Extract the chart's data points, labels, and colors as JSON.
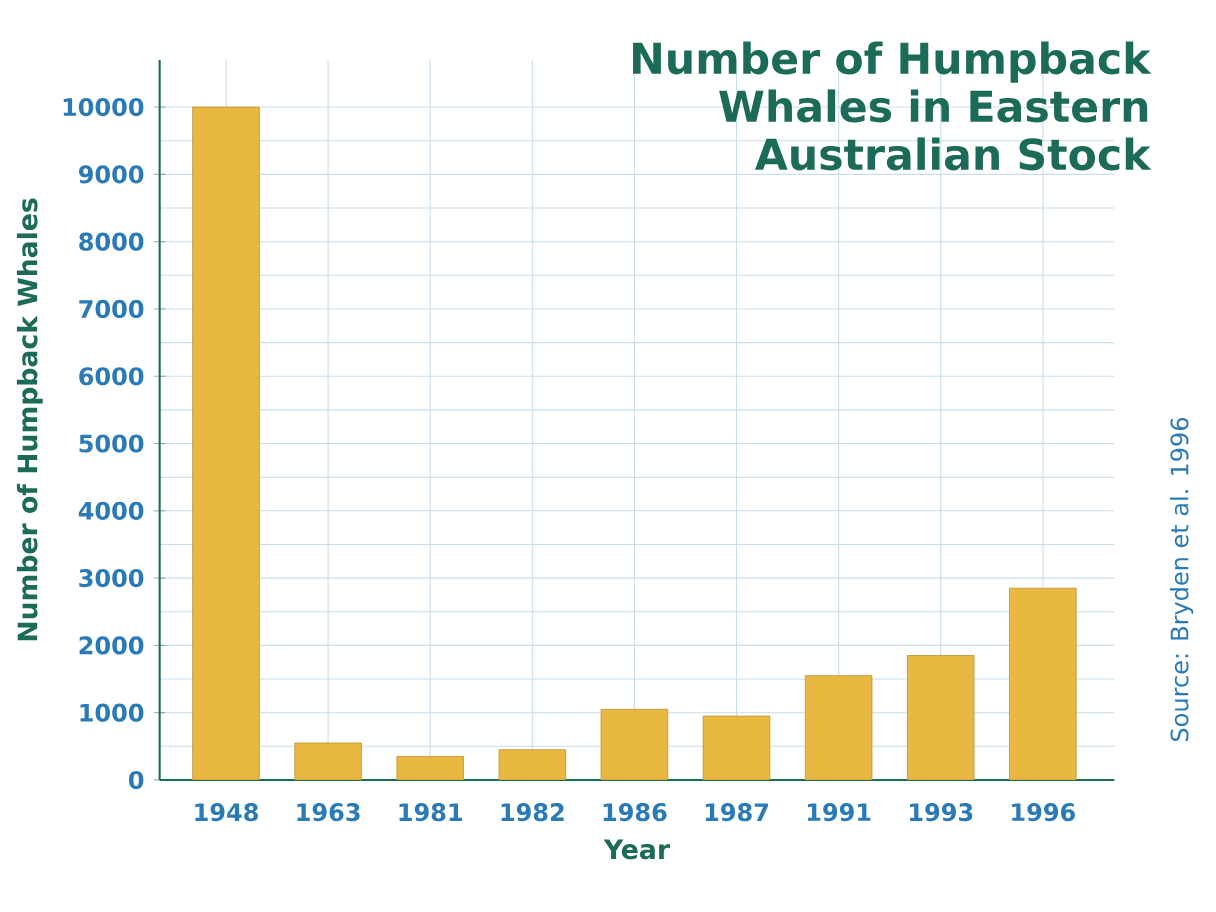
{
  "chart_data": {
    "type": "bar",
    "title": "Number of Humpback Whales in Eastern Australian Stock",
    "xlabel": "Year",
    "ylabel": "Number of Humpback Whales",
    "categories": [
      "1948",
      "1963",
      "1981",
      "1982",
      "1986",
      "1987",
      "1991",
      "1993",
      "1996"
    ],
    "values": [
      10000,
      550,
      350,
      450,
      1050,
      950,
      1550,
      1850,
      2850
    ],
    "color": "#e8b840",
    "ylim": [
      0,
      10700
    ],
    "yticks": [
      0,
      1000,
      2000,
      3000,
      4000,
      5000,
      6000,
      7000,
      8000,
      9000,
      10000
    ],
    "grid": true,
    "annotations": [
      "Source: Bryden et al. 1996"
    ]
  }
}
